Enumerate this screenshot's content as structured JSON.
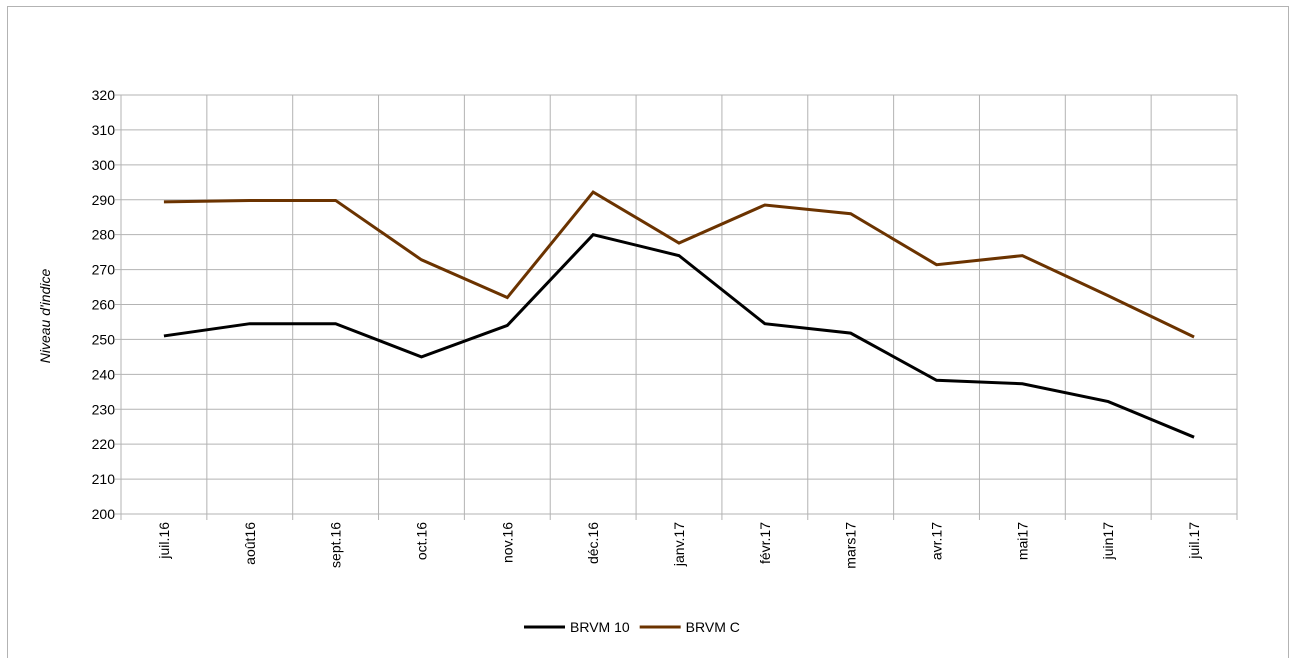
{
  "chart_data": {
    "type": "line",
    "title": "",
    "xlabel": "",
    "ylabel": "Niveau d'indice",
    "ylim": [
      200,
      320
    ],
    "ytick_step": 10,
    "grid": true,
    "legend_position": "bottom",
    "categories": [
      "juil.16",
      "août16",
      "sept.16",
      "oct.16",
      "nov.16",
      "déc.16",
      "janv.17",
      "févr.17",
      "mars17",
      "avr.17",
      "mai17",
      "juin17",
      "juil.17"
    ],
    "series": [
      {
        "name": "BRVM 10",
        "color": "#000000",
        "values": [
          251,
          254.5,
          254.5,
          245,
          254,
          280,
          274,
          254.5,
          251.8,
          238.3,
          237.3,
          232.2,
          222
        ]
      },
      {
        "name": "BRVM C",
        "color": "#6b3300",
        "values": [
          289.4,
          289.8,
          289.8,
          272.8,
          262,
          292.2,
          277.6,
          288.5,
          286,
          271.4,
          274,
          262.5,
          250.7
        ]
      }
    ]
  }
}
